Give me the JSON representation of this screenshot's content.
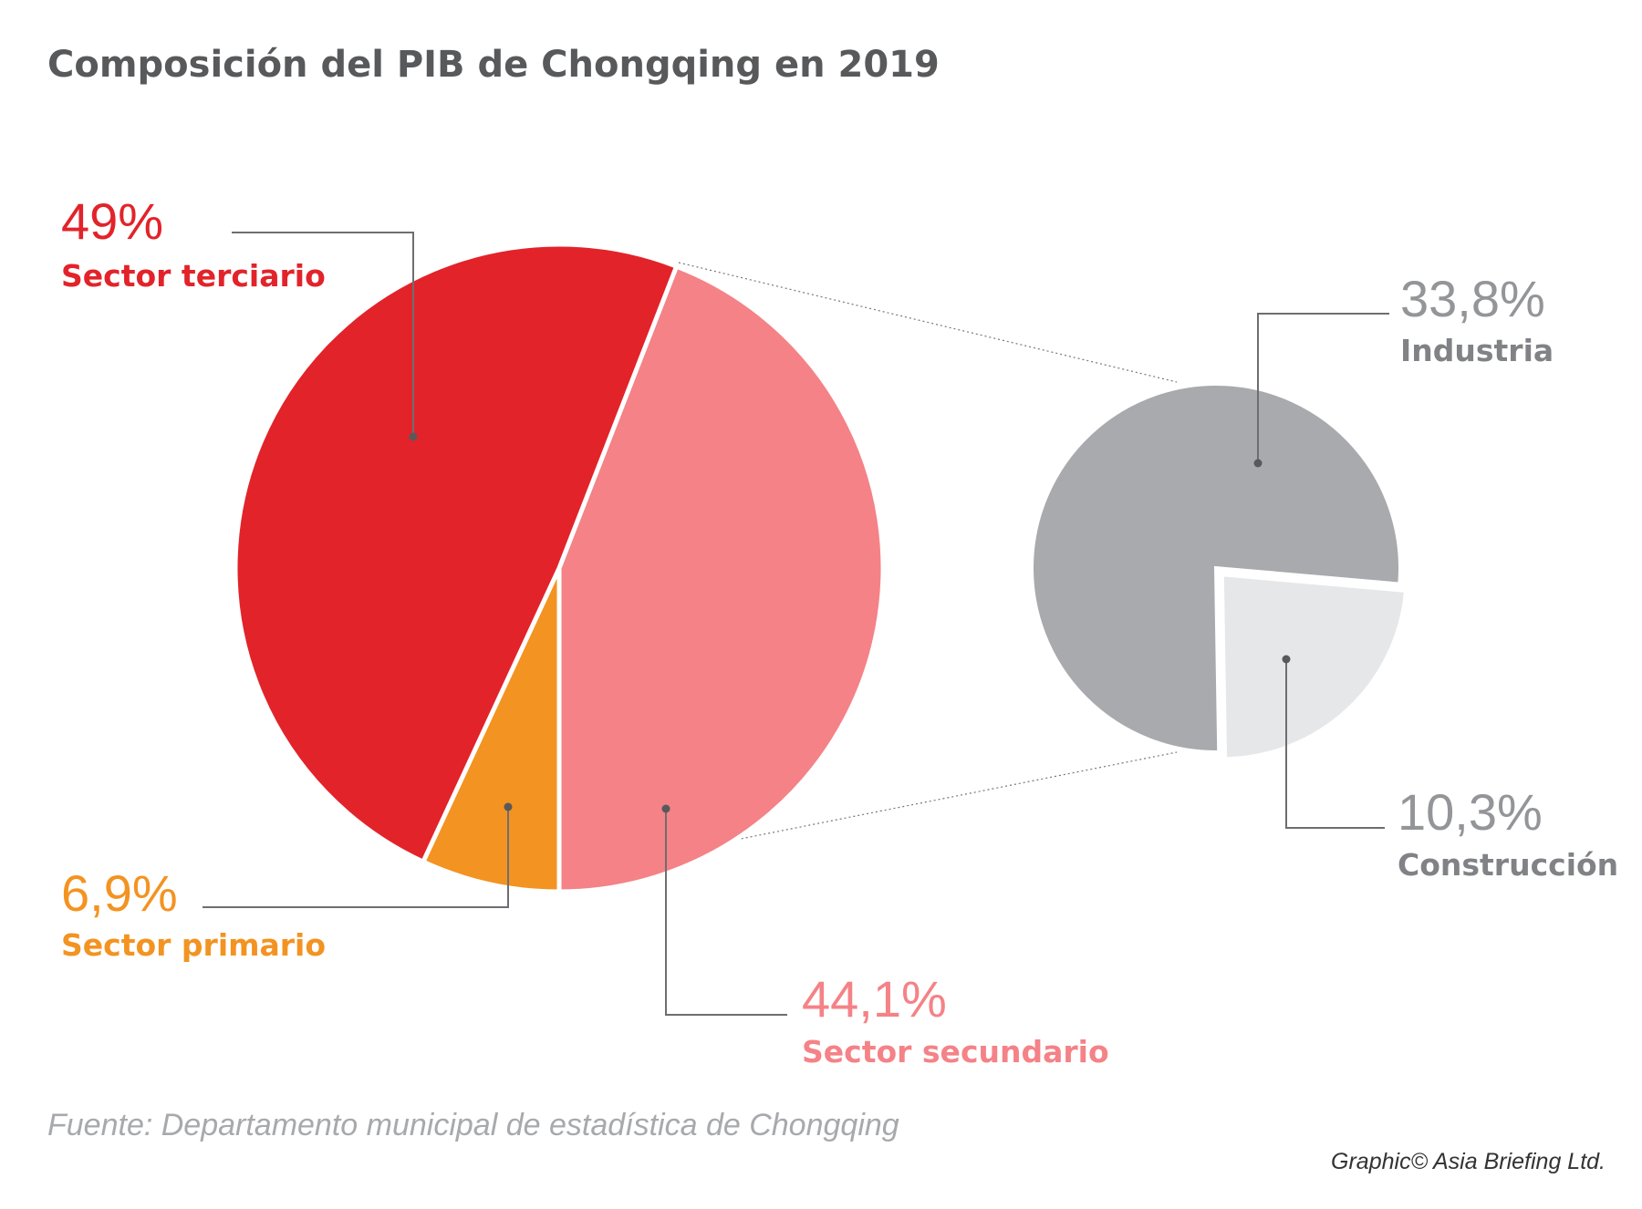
{
  "chart_data": {
    "type": "pie",
    "title": "Composición del PIB de Chongqing en 2019",
    "categories": [
      "Sector secundario",
      "Sector primario",
      "Sector terciario"
    ],
    "values": [
      44.1,
      6.9,
      49
    ],
    "value_labels": [
      "44,1%",
      "6,9%",
      "49%"
    ],
    "colors": [
      "#f48287",
      "#f39321",
      "#e2232a"
    ],
    "breakdown": {
      "categories": [
        "Industria",
        "Construcción"
      ],
      "values": [
        33.8,
        10.3
      ],
      "value_labels": [
        "33,8%",
        "10,3%"
      ],
      "colors": [
        "#a9aaad",
        "#e6e7e8"
      ]
    },
    "source": "Fuente: Departamento municipal de estadística de Chongqing",
    "credit": "Graphic© Asia Briefing Ltd."
  }
}
